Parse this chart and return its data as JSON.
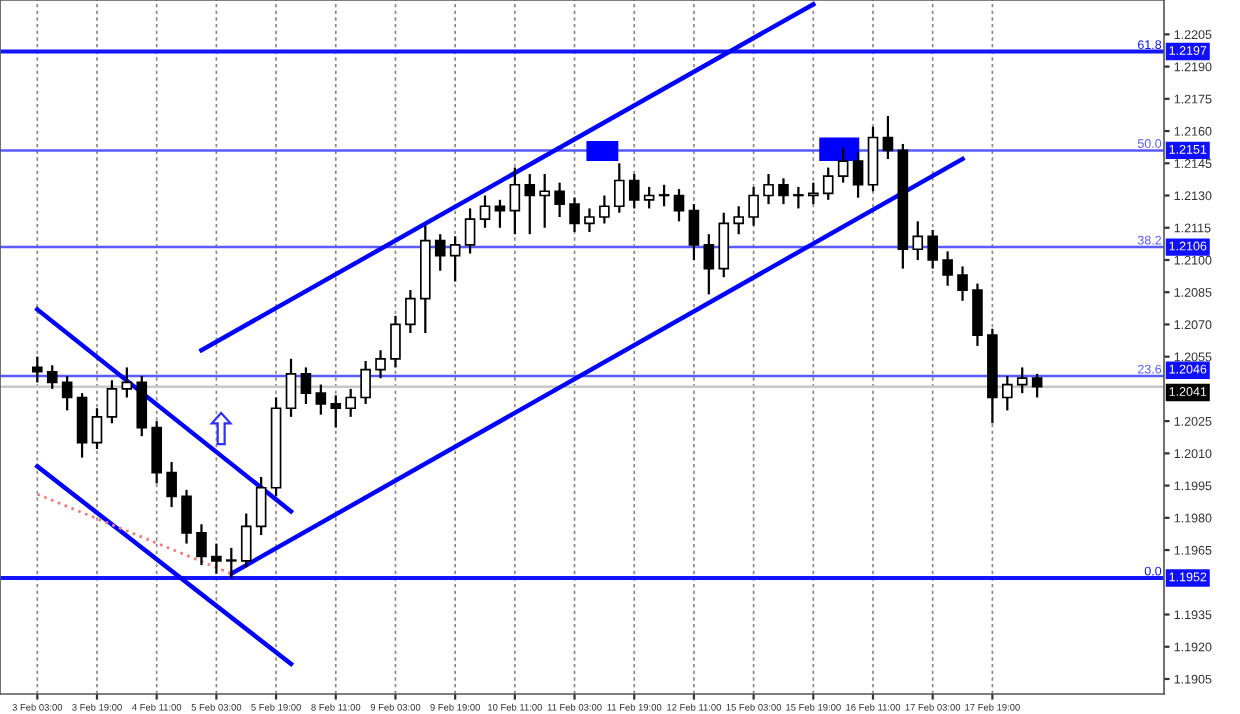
{
  "chart_data": {
    "type": "candlestick",
    "categories": [
      "3 Feb 03:00",
      null,
      null,
      null,
      "3 Feb 19:00",
      null,
      null,
      null,
      "4 Feb 11:00",
      null,
      null,
      null,
      "5 Feb 03:00",
      null,
      null,
      null,
      "5 Feb 19:00",
      null,
      null,
      null,
      "8 Feb 11:00",
      null,
      null,
      null,
      "9 Feb 03:00",
      null,
      null,
      null,
      "9 Feb 19:00",
      null,
      null,
      null,
      "10 Feb 11:00",
      null,
      null,
      null,
      "11 Feb 03:00",
      null,
      null,
      null,
      "11 Feb 19:00",
      null,
      null,
      null,
      "12 Feb 11:00",
      null,
      null,
      null,
      "15 Feb 03:00",
      null,
      null,
      null,
      "15 Feb 19:00",
      null,
      null,
      null,
      "16 Feb 11:00",
      null,
      null,
      null,
      "17 Feb 03:00",
      null,
      null,
      null,
      "17 Feb 19:00",
      null,
      null,
      null,
      null,
      null,
      null,
      null,
      null,
      null,
      null,
      null
    ],
    "ohlc": [
      [
        1.205,
        1.2055,
        1.2043,
        1.2048
      ],
      [
        1.2048,
        1.2051,
        1.204,
        1.2043
      ],
      [
        1.2043,
        1.2046,
        1.203,
        1.2036
      ],
      [
        1.2036,
        1.2038,
        1.2008,
        1.2015
      ],
      [
        1.2015,
        1.2031,
        1.2012,
        1.2027
      ],
      [
        1.2027,
        1.2044,
        1.2024,
        1.204
      ],
      [
        1.204,
        1.205,
        1.2036,
        1.2043
      ],
      [
        1.2043,
        1.2046,
        1.2018,
        1.2022
      ],
      [
        1.2022,
        1.2025,
        1.1996,
        1.2001
      ],
      [
        1.2001,
        1.2006,
        1.1985,
        1.199
      ],
      [
        1.199,
        1.1993,
        1.1968,
        1.1973
      ],
      [
        1.1973,
        1.1977,
        1.1958,
        1.1962
      ],
      [
        1.1962,
        1.1968,
        1.1954,
        1.196
      ],
      [
        1.196,
        1.1966,
        1.1952,
        1.196
      ],
      [
        1.196,
        1.1982,
        1.1957,
        1.1976
      ],
      [
        1.1976,
        1.1999,
        1.1972,
        1.1994
      ],
      [
        1.1994,
        1.2036,
        1.199,
        1.2031
      ],
      [
        1.2031,
        1.2054,
        1.2027,
        1.2047
      ],
      [
        1.2047,
        1.205,
        1.2033,
        1.2038
      ],
      [
        1.2038,
        1.2042,
        1.2028,
        1.2033
      ],
      [
        1.2033,
        1.2037,
        1.2022,
        1.2031
      ],
      [
        1.2031,
        1.204,
        1.2027,
        1.2036
      ],
      [
        1.2036,
        1.2053,
        1.2033,
        1.2049
      ],
      [
        1.2049,
        1.2058,
        1.2045,
        1.2054
      ],
      [
        1.2054,
        1.2074,
        1.205,
        1.207
      ],
      [
        1.207,
        1.2086,
        1.2066,
        1.2082
      ],
      [
        1.2082,
        1.2116,
        1.2066,
        1.2109
      ],
      [
        1.2109,
        1.2112,
        1.2095,
        1.2102
      ],
      [
        1.2102,
        1.2111,
        1.209,
        1.2107
      ],
      [
        1.2107,
        1.2124,
        1.2103,
        1.2119
      ],
      [
        1.2119,
        1.213,
        1.2115,
        1.2125
      ],
      [
        1.2125,
        1.2128,
        1.2115,
        1.2123
      ],
      [
        1.2123,
        1.2143,
        1.2112,
        1.2135
      ],
      [
        1.2135,
        1.214,
        1.2112,
        1.213
      ],
      [
        1.213,
        1.214,
        1.2115,
        1.2132
      ],
      [
        1.2132,
        1.2136,
        1.212,
        1.2126
      ],
      [
        1.2126,
        1.2129,
        1.2113,
        1.2117
      ],
      [
        1.2117,
        1.2124,
        1.2113,
        1.212
      ],
      [
        1.212,
        1.213,
        1.2117,
        1.2125
      ],
      [
        1.2125,
        1.2145,
        1.2122,
        1.2137
      ],
      [
        1.2137,
        1.214,
        1.2124,
        1.2128
      ],
      [
        1.2128,
        1.2134,
        1.2124,
        1.213
      ],
      [
        1.213,
        1.2135,
        1.2125,
        1.213
      ],
      [
        1.213,
        1.2133,
        1.2118,
        1.2123
      ],
      [
        1.2123,
        1.2126,
        1.21,
        1.2107
      ],
      [
        1.2107,
        1.2112,
        1.2084,
        1.2096
      ],
      [
        1.2096,
        1.2122,
        1.2092,
        1.2117
      ],
      [
        1.2117,
        1.2125,
        1.2112,
        1.212
      ],
      [
        1.212,
        1.2134,
        1.2116,
        1.213
      ],
      [
        1.213,
        1.214,
        1.2126,
        1.2135
      ],
      [
        1.2135,
        1.2138,
        1.2126,
        1.213
      ],
      [
        1.213,
        1.2134,
        1.2124,
        1.213
      ],
      [
        1.213,
        1.2136,
        1.2126,
        1.2131
      ],
      [
        1.2131,
        1.2143,
        1.2128,
        1.2139
      ],
      [
        1.2139,
        1.2152,
        1.2136,
        1.2146
      ],
      [
        1.2146,
        1.215,
        1.2129,
        1.2135
      ],
      [
        1.2135,
        1.2162,
        1.2132,
        1.2157
      ],
      [
        1.2157,
        1.2167,
        1.2147,
        1.2151
      ],
      [
        1.2151,
        1.2154,
        1.2096,
        1.2105
      ],
      [
        1.2105,
        1.2118,
        1.21,
        1.2111
      ],
      [
        1.2111,
        1.2114,
        1.2096,
        1.21
      ],
      [
        1.21,
        1.2104,
        1.2088,
        1.2093
      ],
      [
        1.2093,
        1.2097,
        1.2081,
        1.2086
      ],
      [
        1.2086,
        1.2089,
        1.206,
        1.2065
      ],
      [
        1.2065,
        1.2068,
        1.2024,
        1.2036
      ],
      [
        1.2036,
        1.2046,
        1.203,
        1.2042
      ],
      [
        1.2042,
        1.205,
        1.2038,
        1.2045
      ],
      [
        1.2045,
        1.2047,
        1.2036,
        1.2041
      ],
      null,
      null,
      null,
      null,
      null,
      null,
      null,
      null
    ],
    "series": [
      {
        "type": "line",
        "color": "#0000ff",
        "values": [
          null,
          null,
          null,
          null,
          null,
          null,
          null,
          null,
          null,
          null,
          null,
          1.2058,
          null,
          null,
          null,
          null,
          null,
          null,
          null,
          null,
          null,
          null,
          null,
          null,
          null,
          null,
          null,
          null,
          null,
          null,
          null,
          null,
          null,
          null,
          null,
          null,
          null,
          null,
          null,
          null,
          null,
          null,
          null,
          null,
          null,
          null,
          null,
          null,
          null,
          null,
          null,
          null,
          1.2219,
          null,
          null,
          null,
          null,
          null,
          null,
          null,
          null,
          null,
          null,
          null,
          null,
          null,
          null,
          null,
          null,
          null,
          null,
          null,
          null,
          null,
          null,
          null
        ]
      },
      {
        "type": "line",
        "color": "#0000ff",
        "values": [
          null,
          null,
          null,
          null,
          null,
          null,
          null,
          null,
          null,
          null,
          null,
          null,
          null,
          1.1954,
          null,
          null,
          null,
          null,
          null,
          null,
          null,
          null,
          null,
          null,
          null,
          null,
          null,
          null,
          null,
          null,
          null,
          null,
          null,
          null,
          null,
          null,
          null,
          null,
          null,
          null,
          null,
          null,
          null,
          null,
          null,
          null,
          null,
          null,
          null,
          null,
          null,
          null,
          null,
          null,
          null,
          null,
          null,
          null,
          null,
          null,
          null,
          null,
          1.2147,
          null,
          null,
          null,
          null,
          null,
          null,
          null,
          null,
          null,
          null,
          null,
          null,
          null
        ]
      },
      {
        "type": "line",
        "color": "#0000ff",
        "values": [
          1.2077,
          null,
          null,
          null,
          null,
          null,
          null,
          null,
          null,
          null,
          null,
          null,
          null,
          null,
          null,
          null,
          null,
          1.1983,
          null,
          null,
          null,
          null,
          null,
          null,
          null,
          null,
          null,
          null,
          null,
          null,
          null,
          null,
          null,
          null,
          null,
          null,
          null,
          null,
          null,
          null,
          null,
          null,
          null,
          null,
          null,
          null,
          null,
          null,
          null,
          null,
          null,
          null,
          null,
          null,
          null,
          null,
          null,
          null,
          null,
          null,
          null,
          null,
          null,
          null,
          null,
          null,
          null,
          null,
          null,
          null,
          null,
          null,
          null,
          null,
          null,
          null
        ]
      },
      {
        "type": "line",
        "color": "#0000ff",
        "values": [
          1.2004,
          null,
          null,
          null,
          null,
          null,
          null,
          null,
          null,
          null,
          null,
          null,
          null,
          null,
          null,
          null,
          null,
          1.1912,
          null,
          null,
          null,
          null,
          null,
          null,
          null,
          null,
          null,
          null,
          null,
          null,
          null,
          null,
          null,
          null,
          null,
          null,
          null,
          null,
          null,
          null,
          null,
          null,
          null,
          null,
          null,
          null,
          null,
          null,
          null,
          null,
          null,
          null,
          null,
          null,
          null,
          null,
          null,
          null,
          null,
          null,
          null,
          null,
          null,
          null,
          null,
          null,
          null,
          null,
          null,
          null,
          null,
          null,
          null,
          null,
          null,
          null
        ]
      },
      {
        "type": "line",
        "color": "#f08080",
        "line_style": "dotted",
        "values": [
          1.1991,
          null,
          null,
          null,
          null,
          null,
          null,
          null,
          null,
          null,
          null,
          null,
          null,
          1.1954,
          null,
          null,
          null,
          null,
          null,
          null,
          null,
          null,
          null,
          null,
          null,
          null,
          null,
          null,
          null,
          null,
          null,
          null,
          null,
          null,
          null,
          null,
          null,
          null,
          null,
          null,
          null,
          null,
          null,
          null,
          null,
          null,
          null,
          null,
          null,
          null,
          null,
          null,
          null,
          null,
          null,
          null,
          null,
          null,
          null,
          null,
          null,
          null,
          null,
          null,
          null,
          null,
          null,
          null,
          null,
          null,
          null,
          null,
          null,
          null,
          null,
          null
        ]
      }
    ],
    "ylim": [
      1.1898,
      1.2221
    ],
    "yticks": [
      1.1905,
      {
        "value": 1.192,
        "label": "1.1920"
      },
      1.1935,
      1.1965,
      {
        "value": 1.198,
        "label": "1.1980"
      },
      1.1995,
      {
        "value": 1.201,
        "label": "1.2010"
      },
      1.2025,
      1.2055,
      {
        "value": 1.207,
        "label": "1.2070"
      },
      1.2085,
      {
        "value": 1.21,
        "label": "1.2100"
      },
      1.2115,
      {
        "value": 1.213,
        "label": "1.2130"
      },
      1.2145,
      {
        "value": 1.216,
        "label": "1.2160"
      },
      1.2175,
      {
        "value": 1.219,
        "label": "1.2190"
      },
      1.2205
    ],
    "ref_lines": [
      {
        "axis": "y",
        "value": 1.2197,
        "label": "1.2197",
        "color": "#1414ff"
      },
      {
        "axis": "y",
        "value": 1.2151,
        "label": "1.2151",
        "color": "#5a5aff"
      },
      {
        "axis": "y",
        "value": 1.2106,
        "label": "1.2106",
        "color": "#5a5aff"
      },
      {
        "axis": "y",
        "value": 1.2046,
        "label": "1.2046",
        "color": "#5a5aff"
      },
      {
        "axis": "y",
        "value": 1.2041,
        "label": "1.2041",
        "color": "#c8c8c8"
      },
      {
        "axis": "y",
        "value": 1.1952,
        "label": "1.1952",
        "color": "#1414ff"
      }
    ],
    "annotations": [
      {
        "text": "61.8",
        "y": 1.2197
      },
      {
        "text": "50.0",
        "y": 1.2151
      },
      {
        "text": "38.2",
        "y": 1.2106
      },
      {
        "text": "23.6",
        "y": 1.2046
      },
      {
        "text": "0.0",
        "y": 1.1952
      }
    ],
    "grid": "x"
  }
}
